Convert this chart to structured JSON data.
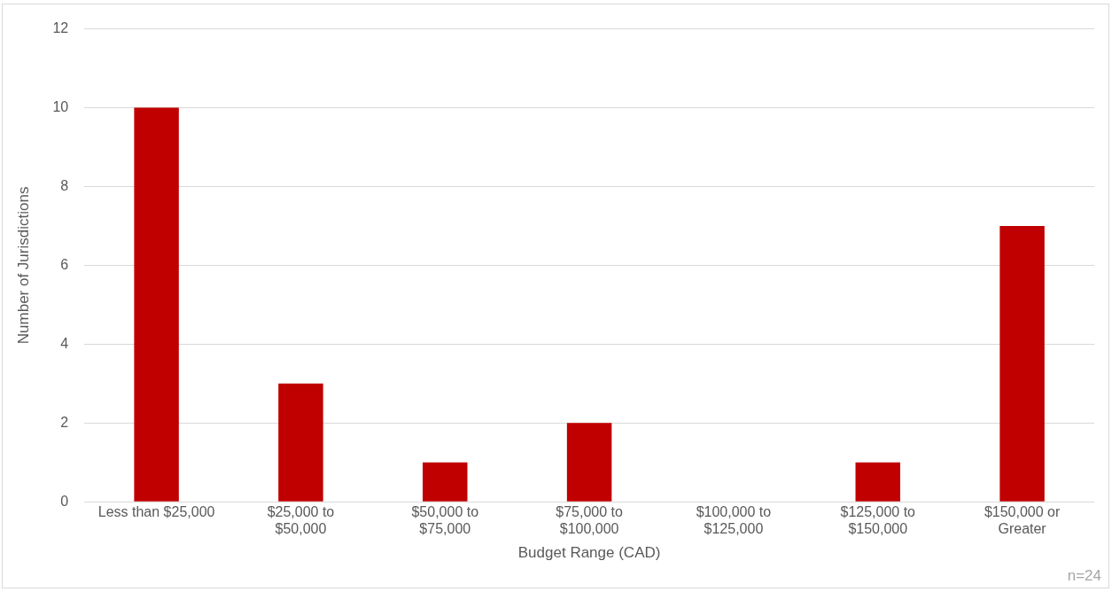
{
  "chart_data": {
    "type": "bar",
    "xlabel": "Budget Range (CAD)",
    "ylabel": "Number of Jurisdictions",
    "categories": [
      "Less than $25,000",
      "$25,000 to $50,000",
      "$50,000 to $75,000",
      "$75,000 to $100,000",
      "$100,000 to $125,000",
      "$125,000 to $150,000",
      "$150,000 or Greater"
    ],
    "values": [
      10,
      3,
      1,
      2,
      0,
      1,
      7
    ],
    "color": "#c00000",
    "ylim": [
      0,
      12
    ],
    "yticks": [
      0,
      2,
      4,
      6,
      8,
      10,
      12
    ],
    "grid": "y",
    "legend": false,
    "annotations": [
      "n=24"
    ]
  }
}
